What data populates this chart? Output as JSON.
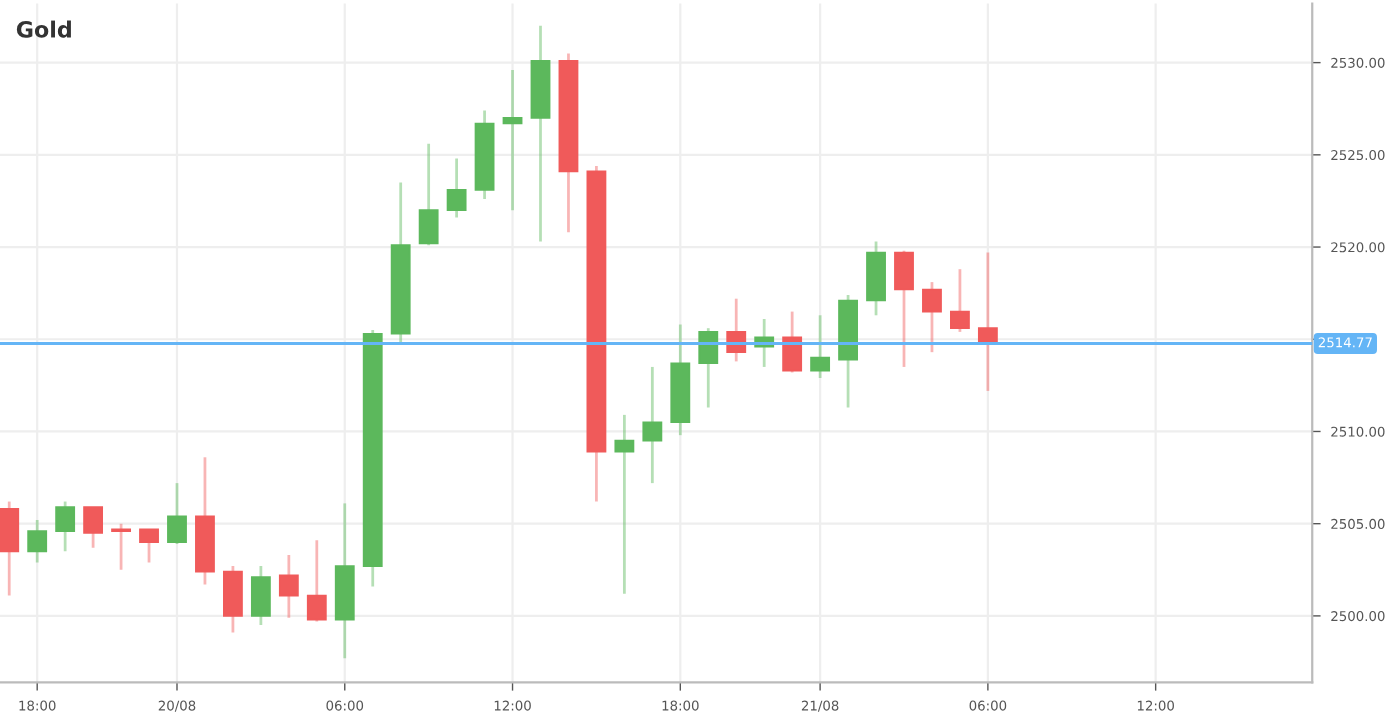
{
  "chart_data": {
    "type": "candlestick",
    "title": "Gold",
    "categories": [
      null,
      "18:00",
      null,
      null,
      null,
      null,
      "20/08",
      null,
      null,
      null,
      null,
      null,
      "06:00",
      null,
      null,
      null,
      null,
      null,
      "12:00",
      null,
      null,
      null,
      null,
      null,
      "18:00",
      null,
      null,
      null,
      null,
      "21/08",
      null,
      null,
      null,
      null,
      null,
      "06:00",
      null,
      null,
      null,
      null,
      null,
      "12:00",
      null,
      null,
      null,
      null,
      null
    ],
    "ohlc": [
      [
        2505.8,
        2506.2,
        2501.1,
        2503.5
      ],
      [
        2503.5,
        2505.2,
        2502.9,
        2504.6
      ],
      [
        2504.6,
        2506.2,
        2503.5,
        2505.9
      ],
      [
        2505.9,
        2505.9,
        2503.7,
        2504.5
      ],
      [
        2504.7,
        2505.0,
        2502.5,
        2504.6
      ],
      [
        2504.7,
        2504.7,
        2502.9,
        2504.0
      ],
      [
        2504.0,
        2507.2,
        2503.9,
        2505.4
      ],
      [
        2505.4,
        2508.6,
        2501.7,
        2502.4
      ],
      [
        2502.4,
        2502.7,
        2499.1,
        2500.0
      ],
      [
        2500.0,
        2502.7,
        2499.5,
        2502.1
      ],
      [
        2502.2,
        2503.3,
        2499.9,
        2501.1
      ],
      [
        2501.1,
        2504.1,
        2499.7,
        2499.8
      ],
      [
        2499.8,
        2506.1,
        2497.7,
        2502.7
      ],
      [
        2502.7,
        2515.5,
        2501.6,
        2515.3
      ],
      [
        2515.3,
        2523.5,
        2514.8,
        2520.1
      ],
      [
        2520.2,
        2525.6,
        2520.1,
        2522.0
      ],
      [
        2522.0,
        2524.8,
        2521.6,
        2523.1
      ],
      [
        2523.1,
        2527.4,
        2522.6,
        2526.7
      ],
      [
        2526.7,
        2529.6,
        2522.0,
        2527.0
      ],
      [
        2527.0,
        2532.0,
        2520.3,
        2530.1
      ],
      [
        2530.1,
        2530.5,
        2520.8,
        2524.1
      ],
      [
        2524.1,
        2524.4,
        2506.2,
        2508.9
      ],
      [
        2508.9,
        2510.9,
        2501.2,
        2509.5
      ],
      [
        2509.5,
        2513.5,
        2507.2,
        2510.5
      ],
      [
        2510.5,
        2515.8,
        2509.8,
        2513.7
      ],
      [
        2513.7,
        2515.6,
        2511.3,
        2515.4
      ],
      [
        2515.4,
        2517.2,
        2513.8,
        2514.3
      ],
      [
        2514.6,
        2516.1,
        2513.5,
        2515.1
      ],
      [
        2515.1,
        2516.5,
        2513.2,
        2513.3
      ],
      [
        2513.3,
        2516.3,
        2512.9,
        2514.0
      ],
      [
        2513.9,
        2517.4,
        2511.3,
        2517.1
      ],
      [
        2517.1,
        2520.3,
        2516.3,
        2519.7
      ],
      [
        2519.7,
        2519.8,
        2513.5,
        2517.7
      ],
      [
        2517.7,
        2518.1,
        2514.3,
        2516.5
      ],
      [
        2516.5,
        2518.8,
        2515.4,
        2515.6
      ],
      [
        2515.6,
        2519.7,
        2512.2,
        2514.77
      ],
      null,
      null,
      null,
      null,
      null,
      null,
      null,
      null,
      null,
      null,
      null
    ],
    "colors": [
      "#f05a5a",
      "#5cb85c",
      "#5cb85c",
      "#f05a5a",
      "#f05a5a",
      "#f05a5a",
      "#5cb85c",
      "#f05a5a",
      "#f05a5a",
      "#5cb85c",
      "#f05a5a",
      "#f05a5a",
      "#5cb85c",
      "#5cb85c",
      "#5cb85c",
      "#5cb85c",
      "#5cb85c",
      "#5cb85c",
      "#5cb85c",
      "#5cb85c",
      "#f05a5a",
      "#f05a5a",
      "#5cb85c",
      "#5cb85c",
      "#5cb85c",
      "#5cb85c",
      "#f05a5a",
      "#5cb85c",
      "#f05a5a",
      "#5cb85c",
      "#5cb85c",
      "#5cb85c",
      "#f05a5a",
      "#f05a5a",
      "#f05a5a",
      "#f05a5a",
      null,
      null,
      null,
      null,
      null,
      null,
      null,
      null,
      null,
      null,
      null
    ],
    "ylim": [
      2496.4,
      2533.2
    ],
    "yticks": [
      {
        "value": 2500,
        "label": "2500.00"
      },
      {
        "value": 2505,
        "label": "2505.00"
      },
      {
        "value": 2510,
        "label": "2510.00"
      },
      {
        "value": 2515,
        "label": null
      },
      {
        "value": 2520,
        "label": "2520.00"
      },
      {
        "value": 2525,
        "label": "2525.00"
      },
      {
        "value": 2530,
        "label": "2530.00"
      }
    ],
    "ref_lines": [
      {
        "axis": "y",
        "value": 2514.77,
        "label": "2514.77",
        "color": "#64b5f6"
      }
    ],
    "grid": true
  }
}
